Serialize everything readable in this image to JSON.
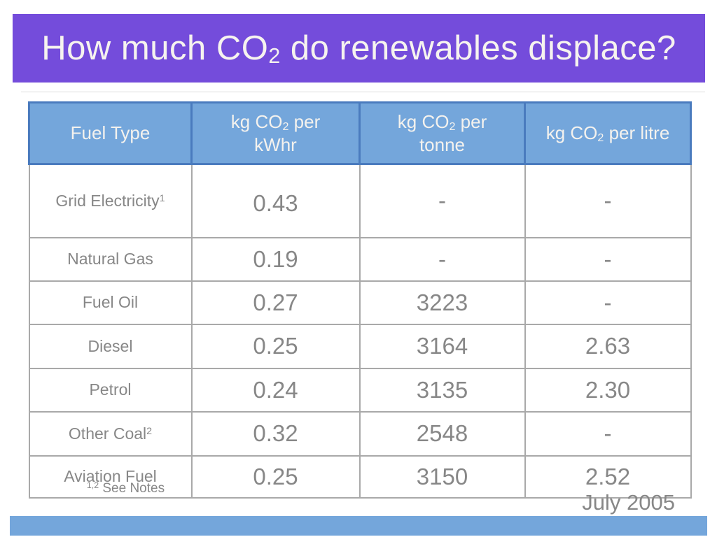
{
  "slide": {
    "title_parts": [
      {
        "t": "How much CO"
      },
      {
        "t": "2",
        "sub": true
      },
      {
        "t": " do renewables displace?"
      }
    ],
    "footnote_parts": [
      {
        "t": "1,2",
        "sup": true
      },
      {
        "t": " See Notes"
      }
    ],
    "date": "July 2005"
  },
  "colors": {
    "banner_purple": "#744CDB",
    "title_text": "#F6F3EF",
    "header_blue": "#74A6DB",
    "header_border_blue": "#4A7BBE",
    "header_text": "#F4F2EE",
    "body_border_gray": "#A9A9A9",
    "text_gray": "#878787",
    "footer_bar_blue": "#74A6DB"
  },
  "table": {
    "columns": [
      {
        "label_parts": [
          {
            "t": "Fuel Type"
          }
        ]
      },
      {
        "label_parts": [
          {
            "t": "kg CO"
          },
          {
            "t": "2",
            "sub": true
          },
          {
            "t": " per"
          },
          {
            "br": true
          },
          {
            "t": "kWhr"
          }
        ]
      },
      {
        "label_parts": [
          {
            "t": "kg CO"
          },
          {
            "t": "2",
            "sub": true
          },
          {
            "t": " per"
          },
          {
            "br": true
          },
          {
            "t": "tonne"
          }
        ]
      },
      {
        "label_parts": [
          {
            "t": "kg CO"
          },
          {
            "t": "2",
            "sub": true
          },
          {
            "t": " per litre"
          }
        ]
      }
    ],
    "rows": [
      {
        "fuel_parts": [
          {
            "t": "Grid Electricity"
          },
          {
            "t": "1",
            "sup": true
          }
        ],
        "kwhr": "0.43",
        "tonne": "-",
        "litre": "-"
      },
      {
        "fuel_parts": [
          {
            "t": "Natural Gas"
          }
        ],
        "kwhr": "0.19",
        "tonne": "-",
        "litre": "-"
      },
      {
        "fuel_parts": [
          {
            "t": "Fuel Oil"
          }
        ],
        "kwhr": "0.27",
        "tonne": "3223",
        "litre": "-"
      },
      {
        "fuel_parts": [
          {
            "t": "Diesel"
          }
        ],
        "kwhr": "0.25",
        "tonne": "3164",
        "litre": "2.63"
      },
      {
        "fuel_parts": [
          {
            "t": "Petrol"
          }
        ],
        "kwhr": "0.24",
        "tonne": "3135",
        "litre": "2.30"
      },
      {
        "fuel_parts": [
          {
            "t": "Other Coal"
          },
          {
            "t": "2",
            "sup": true
          }
        ],
        "kwhr": "0.32",
        "tonne": "2548",
        "litre": "-"
      },
      {
        "fuel_parts": [
          {
            "t": "Aviation Fuel"
          }
        ],
        "kwhr": "0.25",
        "tonne": "3150",
        "litre": "2.52"
      }
    ]
  }
}
